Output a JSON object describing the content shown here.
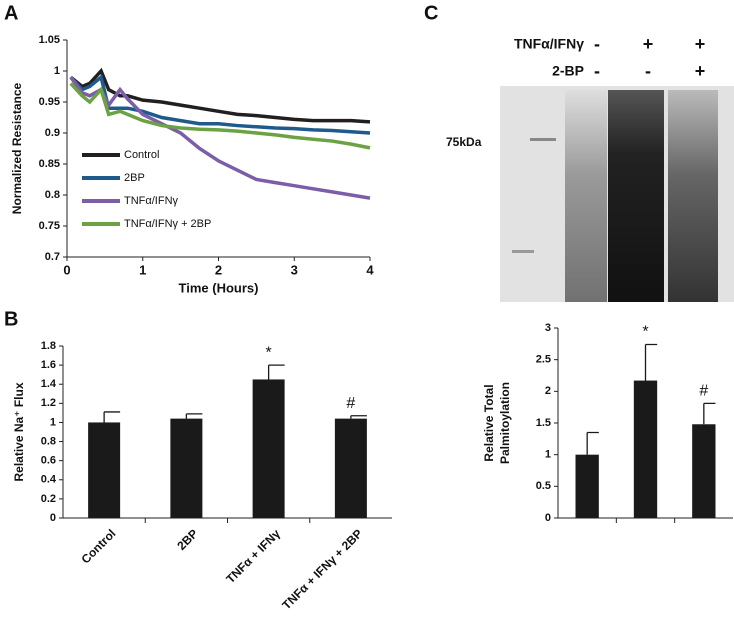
{
  "panels": [
    "A",
    "B",
    "C"
  ],
  "blot": {
    "rows": [
      {
        "label": "TNFα/IFNγ",
        "signs": [
          "-",
          "+",
          "+"
        ]
      },
      {
        "label": "2-BP",
        "signs": [
          "-",
          "-",
          "+"
        ]
      }
    ],
    "marker": "75kDa"
  },
  "chart_data": [
    {
      "type": "line",
      "xlabel": "Time (Hours)",
      "ylabel": "Normalized Resistance",
      "x": [
        0.05,
        0.2,
        0.3,
        0.45,
        0.55,
        0.7,
        0.8,
        1,
        1.25,
        1.5,
        1.75,
        2,
        2.25,
        2.5,
        2.75,
        3,
        3.25,
        3.5,
        3.75,
        4
      ],
      "xlim": [
        0,
        4
      ],
      "xticks": [
        0,
        1,
        2,
        3,
        4
      ],
      "ylim": [
        0.7,
        1.05
      ],
      "yticks": [
        0.7,
        0.75,
        0.8,
        0.85,
        0.9,
        0.95,
        1,
        1.05
      ],
      "series": [
        {
          "name": "Control",
          "color": "#231f20",
          "values": [
            0.99,
            0.975,
            0.98,
            1.0,
            0.97,
            0.96,
            0.96,
            0.953,
            0.95,
            0.945,
            0.94,
            0.935,
            0.93,
            0.928,
            0.925,
            0.922,
            0.92,
            0.92,
            0.92,
            0.918
          ]
        },
        {
          "name": "2BP",
          "color": "#1f5a8c",
          "values": [
            0.99,
            0.97,
            0.975,
            0.99,
            0.94,
            0.94,
            0.94,
            0.935,
            0.925,
            0.92,
            0.915,
            0.915,
            0.912,
            0.91,
            0.908,
            0.907,
            0.905,
            0.904,
            0.902,
            0.9
          ]
        },
        {
          "name": "TNFα/IFNγ",
          "color": "#7b5ea7",
          "values": [
            0.99,
            0.965,
            0.96,
            0.97,
            0.945,
            0.97,
            0.955,
            0.93,
            0.915,
            0.9,
            0.875,
            0.855,
            0.84,
            0.825,
            0.82,
            0.815,
            0.81,
            0.805,
            0.8,
            0.795
          ]
        },
        {
          "name": "TNFα/IFNγ + 2BP",
          "color": "#6ba344",
          "values": [
            0.98,
            0.96,
            0.95,
            0.97,
            0.93,
            0.935,
            0.93,
            0.92,
            0.912,
            0.908,
            0.906,
            0.905,
            0.903,
            0.9,
            0.897,
            0.893,
            0.89,
            0.887,
            0.882,
            0.876
          ]
        }
      ]
    },
    {
      "type": "bar",
      "ylabel": "Relative Na⁺ Flux",
      "color": "#1a1a1a",
      "categories": [
        "Control",
        "2BP",
        "TNFα + IFNγ",
        "TNFα + IFNγ + 2BP"
      ],
      "values": [
        1,
        1.04,
        1.45,
        1.04
      ],
      "errors": [
        0.11,
        0.05,
        0.15,
        0.03
      ],
      "markers": [
        null,
        null,
        "*",
        "#"
      ],
      "ylim": [
        0,
        1.8
      ],
      "yticks": [
        0,
        0.2,
        0.4,
        0.6,
        0.8,
        1,
        1.2,
        1.4,
        1.6,
        1.8
      ]
    },
    {
      "type": "bar",
      "ylabel": [
        "Relative Total",
        "Palmitoylation"
      ],
      "color": "#1a1a1a",
      "values": [
        1,
        2.17,
        1.48
      ],
      "errors": [
        0.35,
        0.57,
        0.33
      ],
      "markers": [
        null,
        "*",
        "#"
      ],
      "ylim": [
        0,
        3
      ],
      "yticks": [
        0,
        0.5,
        1,
        1.5,
        2,
        2.5,
        3
      ]
    }
  ]
}
